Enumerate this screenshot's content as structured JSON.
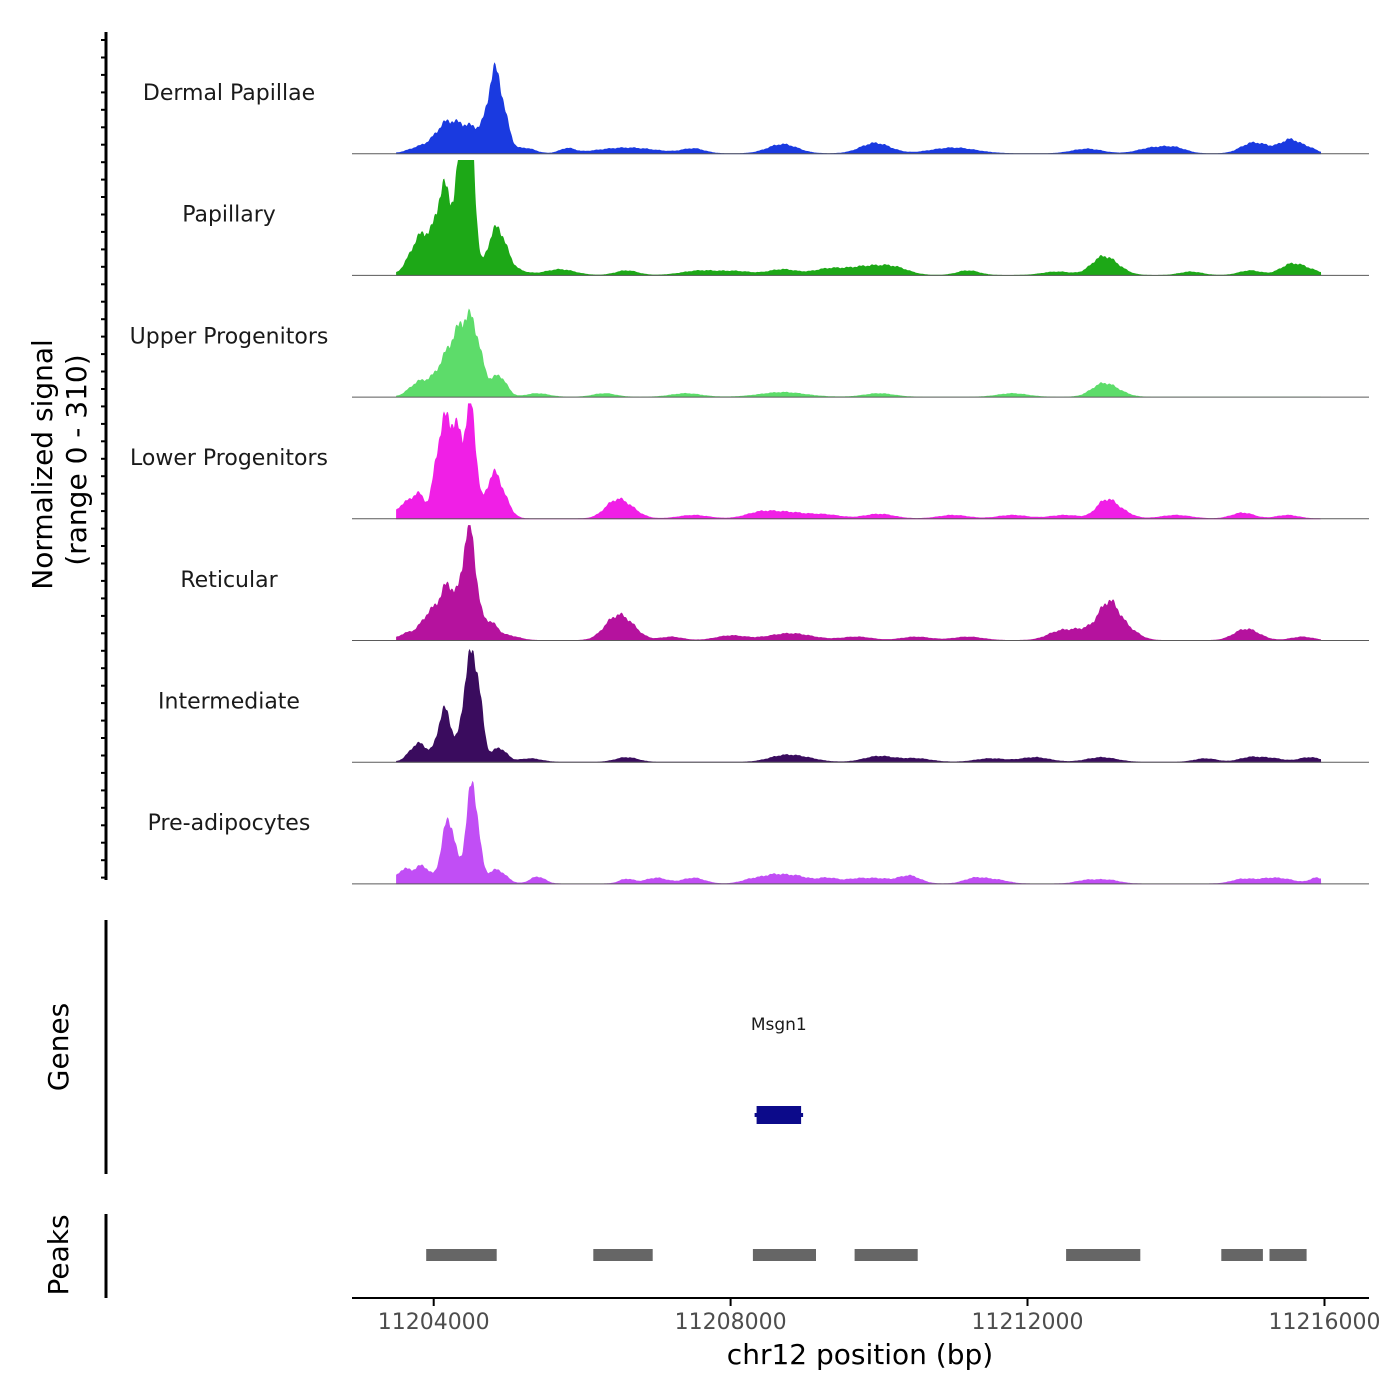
{
  "chart_data": {
    "type": "area",
    "title": "",
    "ylabel": "Normalized signal\n(range 0 - 310)",
    "xlabel": "chr12 position (bp)",
    "xlim": [
      11202900,
      11216600
    ],
    "ylim": [
      0,
      310
    ],
    "x_ticks": [
      11204000,
      11208000,
      11212000,
      11216000
    ],
    "x_tick_labels": [
      "11204000",
      "11208000",
      "11212000",
      "11216000"
    ],
    "series": [
      {
        "name": "Dermal Papillae",
        "color": "#1a3ae0",
        "peaks": [
          [
            11203800,
            4,
            150
          ],
          [
            11204150,
            12,
            130
          ],
          [
            11204450,
            24,
            300
          ],
          [
            11204830,
            60,
            90
          ],
          [
            11204980,
            12,
            70
          ],
          [
            11205250,
            4,
            120
          ],
          [
            11205800,
            4,
            100
          ],
          [
            11206600,
            5,
            400
          ],
          [
            11207500,
            4,
            150
          ],
          [
            11208700,
            8,
            200
          ],
          [
            11209950,
            9,
            200
          ],
          [
            11211000,
            5,
            300
          ],
          [
            11212800,
            4,
            200
          ],
          [
            11213700,
            5,
            200
          ],
          [
            11214000,
            4,
            150
          ],
          [
            11215000,
            6,
            150
          ],
          [
            11215200,
            5,
            200
          ],
          [
            11215550,
            11,
            130
          ],
          [
            11215800,
            4,
            100
          ]
        ]
      },
      {
        "name": "Papillary",
        "color": "#1da817",
        "peaks": [
          [
            11203750,
            8,
            130
          ],
          [
            11203880,
            30,
            150
          ],
          [
            11204150,
            70,
            100
          ],
          [
            11204400,
            120,
            80
          ],
          [
            11204500,
            90,
            60
          ],
          [
            11204850,
            40,
            120
          ],
          [
            11205100,
            4,
            150
          ],
          [
            11205700,
            5,
            200
          ],
          [
            11206600,
            4,
            150
          ],
          [
            11207600,
            4,
            250
          ],
          [
            11208100,
            3,
            200
          ],
          [
            11208700,
            5,
            200
          ],
          [
            11209300,
            5,
            200
          ],
          [
            11209800,
            7,
            250
          ],
          [
            11210200,
            6,
            200
          ],
          [
            11211200,
            4,
            150
          ],
          [
            11212400,
            3,
            200
          ],
          [
            11213000,
            14,
            150
          ],
          [
            11213200,
            5,
            150
          ],
          [
            11214200,
            3,
            150
          ],
          [
            11215000,
            4,
            150
          ],
          [
            11215550,
            9,
            150
          ],
          [
            11215800,
            4,
            150
          ]
        ]
      },
      {
        "name": "Upper Progenitors",
        "color": "#5ddc6a",
        "peaks": [
          [
            11203800,
            12,
            130
          ],
          [
            11204150,
            25,
            150
          ],
          [
            11204380,
            45,
            140
          ],
          [
            11204550,
            40,
            110
          ],
          [
            11204880,
            18,
            100
          ],
          [
            11205400,
            3,
            150
          ],
          [
            11206300,
            3,
            150
          ],
          [
            11207400,
            3,
            200
          ],
          [
            11208700,
            4,
            300
          ],
          [
            11210000,
            3,
            200
          ],
          [
            11211800,
            3,
            200
          ],
          [
            11213000,
            10,
            150
          ],
          [
            11213200,
            4,
            150
          ]
        ]
      },
      {
        "name": "Lower Progenitors",
        "color": "#f01fe6",
        "peaks": [
          [
            11203600,
            12,
            100
          ],
          [
            11203800,
            20,
            90
          ],
          [
            11204050,
            40,
            70
          ],
          [
            11204180,
            75,
            80
          ],
          [
            11204330,
            60,
            70
          ],
          [
            11204500,
            95,
            70
          ],
          [
            11204800,
            35,
            100
          ],
          [
            11204950,
            12,
            100
          ],
          [
            11206450,
            14,
            150
          ],
          [
            11206650,
            6,
            150
          ],
          [
            11207500,
            3,
            200
          ],
          [
            11208400,
            5,
            200
          ],
          [
            11208800,
            5,
            250
          ],
          [
            11209300,
            3,
            200
          ],
          [
            11210000,
            4,
            200
          ],
          [
            11211000,
            3,
            200
          ],
          [
            11211800,
            3,
            200
          ],
          [
            11212500,
            3,
            200
          ],
          [
            11213050,
            14,
            130
          ],
          [
            11213250,
            6,
            150
          ],
          [
            11214000,
            3,
            200
          ],
          [
            11214900,
            5,
            150
          ],
          [
            11215500,
            3,
            150
          ]
        ]
      },
      {
        "name": "Reticular",
        "color": "#b5129e",
        "peaks": [
          [
            11203650,
            6,
            120
          ],
          [
            11203950,
            22,
            120
          ],
          [
            11204200,
            45,
            110
          ],
          [
            11204480,
            95,
            90
          ],
          [
            11204750,
            15,
            100
          ],
          [
            11205000,
            4,
            150
          ],
          [
            11206450,
            18,
            160
          ],
          [
            11206650,
            8,
            150
          ],
          [
            11207200,
            3,
            150
          ],
          [
            11208000,
            4,
            200
          ],
          [
            11208800,
            6,
            300
          ],
          [
            11209700,
            3,
            200
          ],
          [
            11210500,
            3,
            200
          ],
          [
            11211200,
            3,
            200
          ],
          [
            11212400,
            4,
            150
          ],
          [
            11212800,
            10,
            300
          ],
          [
            11213100,
            26,
            130
          ],
          [
            11213350,
            8,
            150
          ],
          [
            11214900,
            7,
            150
          ],
          [
            11215050,
            4,
            150
          ],
          [
            11215700,
            3,
            150
          ]
        ]
      },
      {
        "name": "Intermediate",
        "color": "#3a0c5e",
        "peaks": [
          [
            11203800,
            16,
            120
          ],
          [
            11204150,
            45,
            90
          ],
          [
            11204480,
            80,
            90
          ],
          [
            11204600,
            40,
            70
          ],
          [
            11204880,
            12,
            100
          ],
          [
            11205300,
            3,
            150
          ],
          [
            11206600,
            4,
            150
          ],
          [
            11208700,
            5,
            200
          ],
          [
            11209000,
            3,
            200
          ],
          [
            11210000,
            5,
            200
          ],
          [
            11210500,
            3,
            200
          ],
          [
            11211500,
            3,
            200
          ],
          [
            11212100,
            4,
            200
          ],
          [
            11213000,
            4,
            200
          ],
          [
            11214400,
            3,
            150
          ],
          [
            11215000,
            4,
            150
          ],
          [
            11215300,
            3,
            150
          ],
          [
            11215800,
            4,
            150
          ]
        ]
      },
      {
        "name": "Pre-adipocytes",
        "color": "#c14ef5",
        "peaks": [
          [
            11203600,
            12,
            100
          ],
          [
            11203850,
            15,
            100
          ],
          [
            11204200,
            55,
            90
          ],
          [
            11204520,
            85,
            80
          ],
          [
            11204850,
            12,
            120
          ],
          [
            11205400,
            6,
            100
          ],
          [
            11206600,
            4,
            100
          ],
          [
            11207000,
            5,
            150
          ],
          [
            11207500,
            5,
            150
          ],
          [
            11208300,
            4,
            150
          ],
          [
            11208600,
            7,
            150
          ],
          [
            11208900,
            6,
            150
          ],
          [
            11209300,
            5,
            150
          ],
          [
            11209700,
            4,
            150
          ],
          [
            11210000,
            4,
            150
          ],
          [
            11210400,
            7,
            150
          ],
          [
            11211300,
            5,
            150
          ],
          [
            11211600,
            3,
            150
          ],
          [
            11212800,
            3,
            150
          ],
          [
            11213100,
            3,
            150
          ],
          [
            11214900,
            4,
            150
          ],
          [
            11215250,
            4,
            150
          ],
          [
            11215500,
            3,
            150
          ],
          [
            11215900,
            5,
            100
          ]
        ]
      }
    ],
    "genes": [
      {
        "name": "Msgn1",
        "start": 11208350,
        "end": 11208950,
        "color": "#0c0a8a"
      }
    ],
    "peak_regions": [
      [
        11203900,
        11204850
      ],
      [
        11206150,
        11206950
      ],
      [
        11208300,
        11209150
      ],
      [
        11209670,
        11210520
      ],
      [
        11212520,
        11213520
      ],
      [
        11214610,
        11215170
      ],
      [
        11215260,
        11215760
      ]
    ],
    "track_labels": {
      "genes": "Genes",
      "peaks": "Peaks"
    }
  }
}
